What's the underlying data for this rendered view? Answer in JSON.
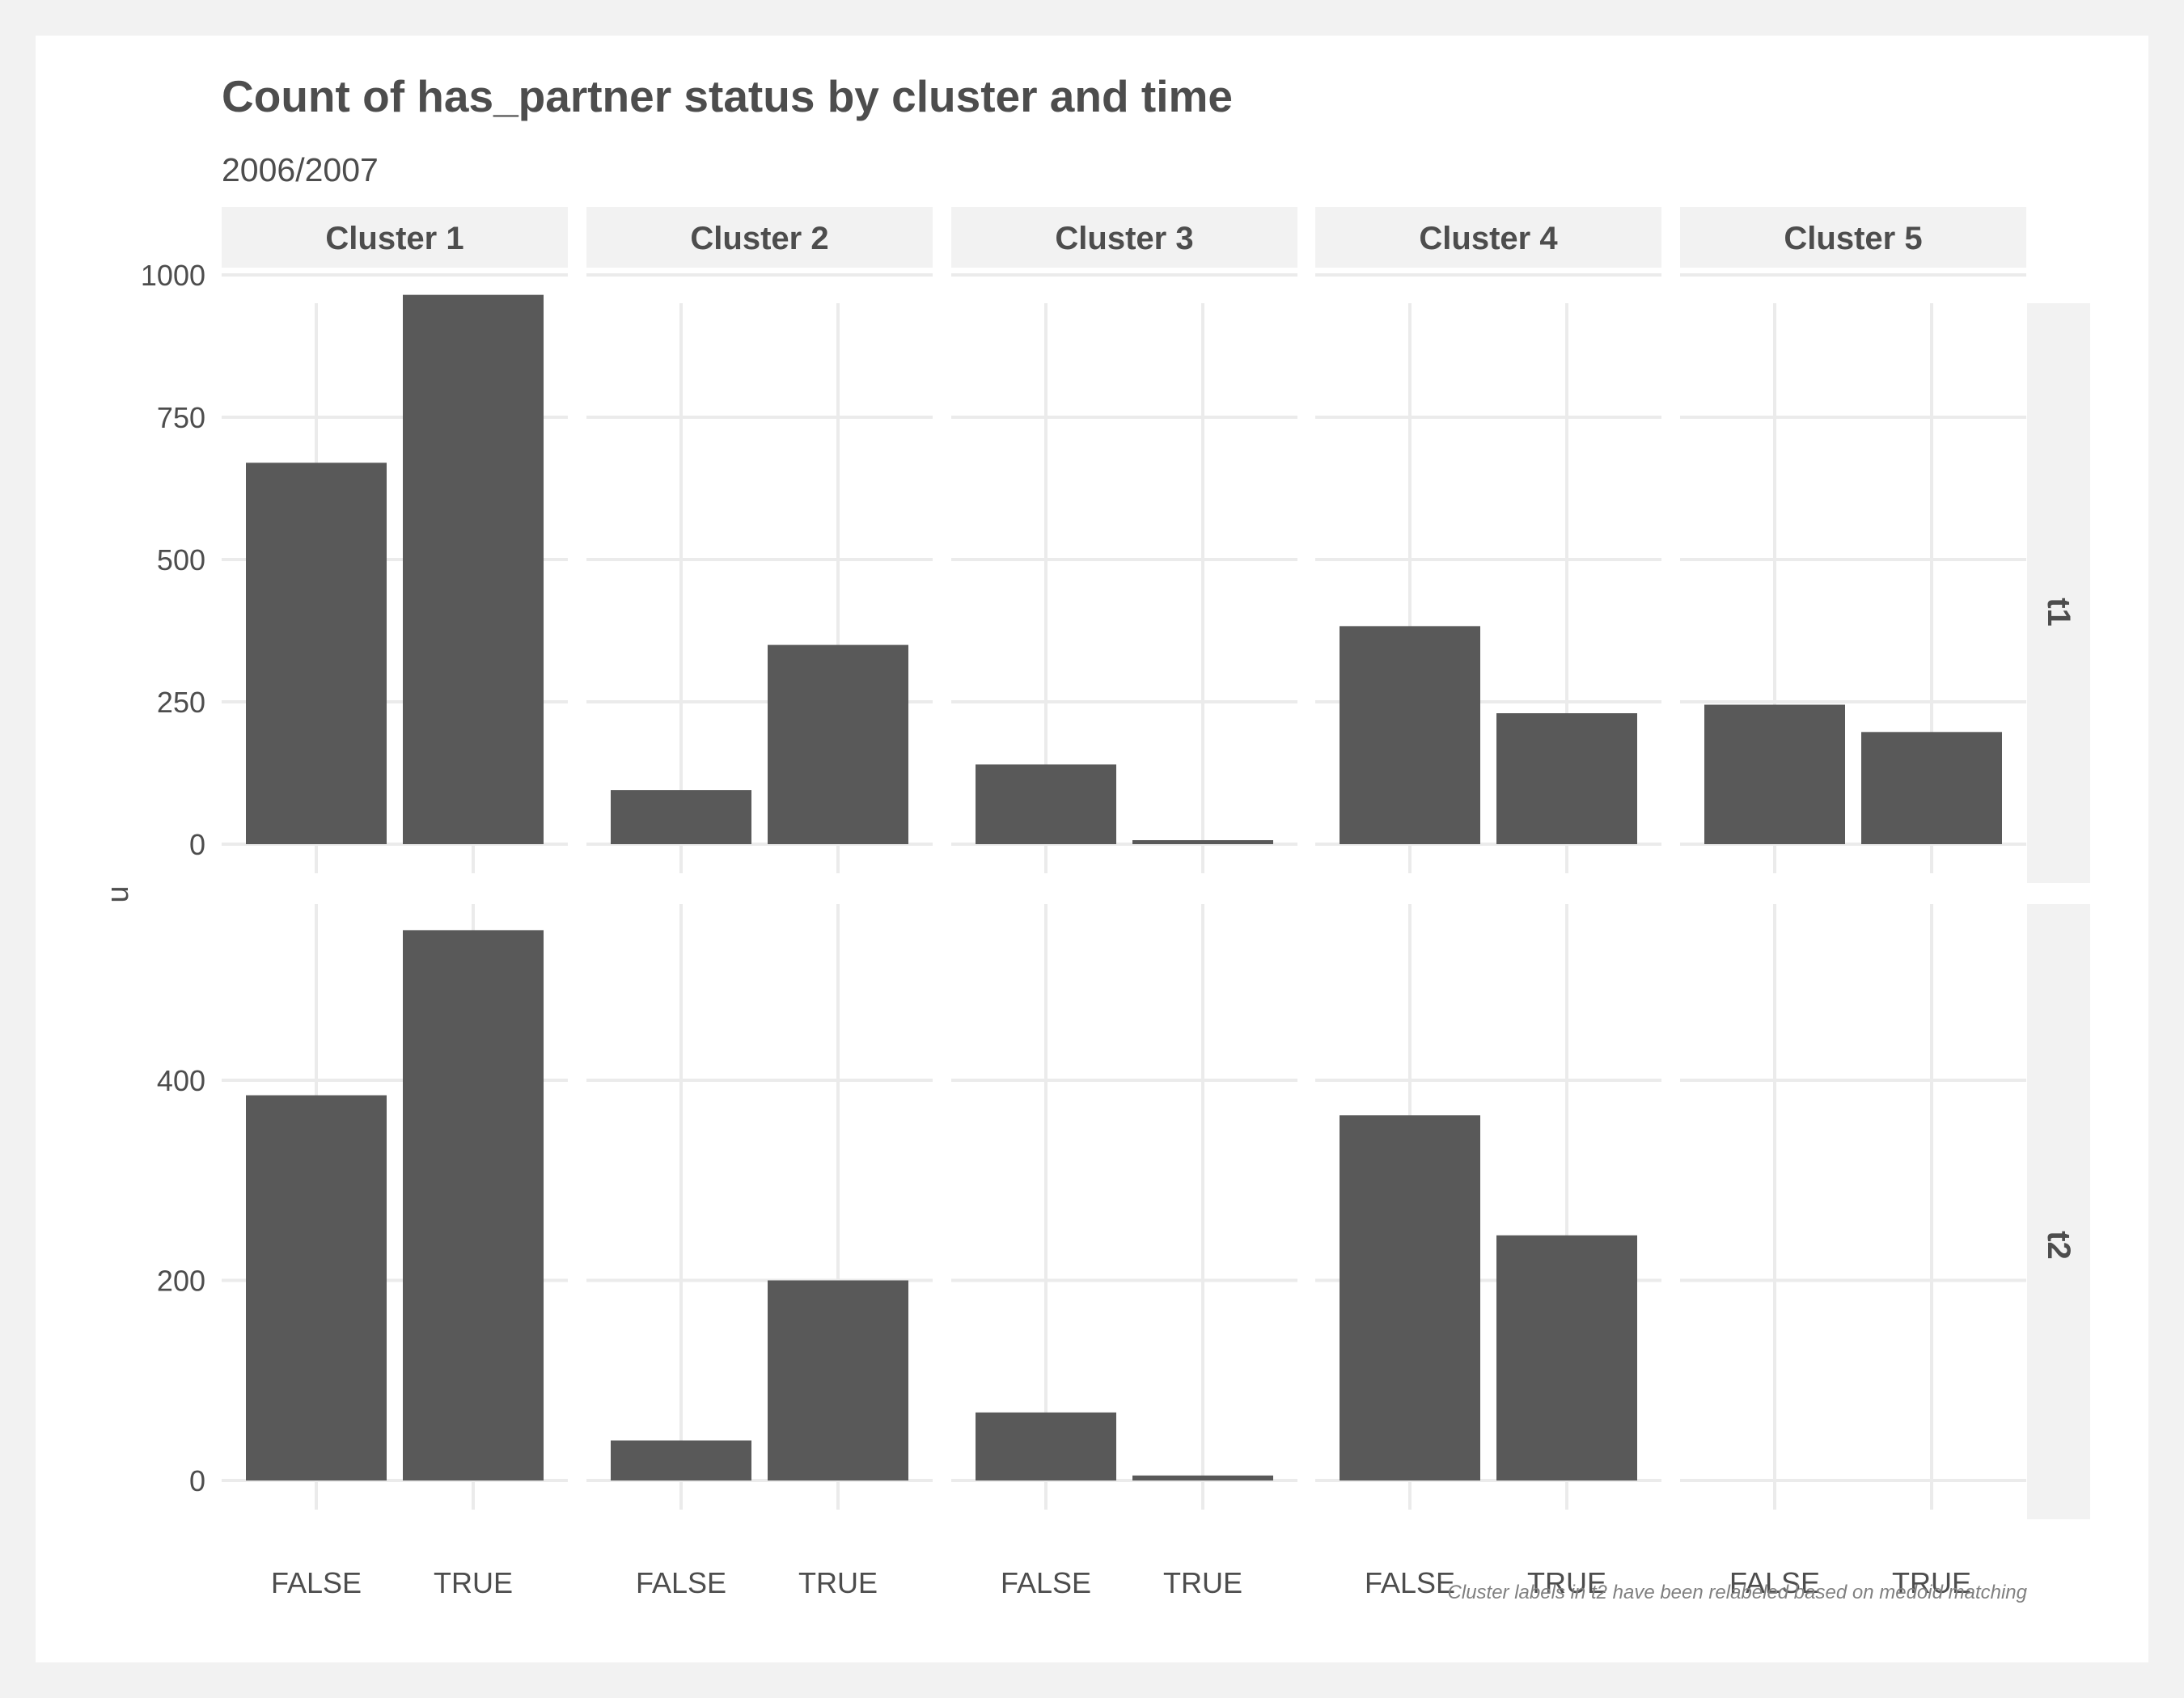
{
  "chart_data": {
    "type": "bar",
    "title": "Count of has_partner status by cluster and time",
    "subtitle": "2006/2007",
    "caption": "Cluster labels in t2 have been relabeled based on medoid matching",
    "xlabel": "",
    "ylabel": "n",
    "categories": [
      "FALSE",
      "TRUE"
    ],
    "facet_columns": [
      "Cluster 1",
      "Cluster 2",
      "Cluster 3",
      "Cluster 4",
      "Cluster 5"
    ],
    "facet_rows": [
      {
        "label": "t1",
        "ylim": [
          0,
          1000
        ],
        "yticks": [
          0,
          250,
          500,
          750,
          1000
        ],
        "panels": [
          {
            "cluster": "Cluster 1",
            "values": [
              670,
              965
            ]
          },
          {
            "cluster": "Cluster 2",
            "values": [
              95,
              350
            ]
          },
          {
            "cluster": "Cluster 3",
            "values": [
              140,
              7
            ]
          },
          {
            "cluster": "Cluster 4",
            "values": [
              383,
              230
            ]
          },
          {
            "cluster": "Cluster 5",
            "values": [
              245,
              197
            ]
          }
        ]
      },
      {
        "label": "t2",
        "ylim": [
          0,
          550
        ],
        "yticks": [
          0,
          200,
          400
        ],
        "panels": [
          {
            "cluster": "Cluster 1",
            "values": [
              385,
              550
            ]
          },
          {
            "cluster": "Cluster 2",
            "values": [
              40,
              200
            ]
          },
          {
            "cluster": "Cluster 3",
            "values": [
              68,
              5
            ]
          },
          {
            "cluster": "Cluster 4",
            "values": [
              365,
              245
            ]
          },
          {
            "cluster": "Cluster 5",
            "values": [
              0,
              0
            ]
          }
        ]
      }
    ],
    "bar_color": "#595959",
    "grid": true,
    "legend": "none"
  }
}
